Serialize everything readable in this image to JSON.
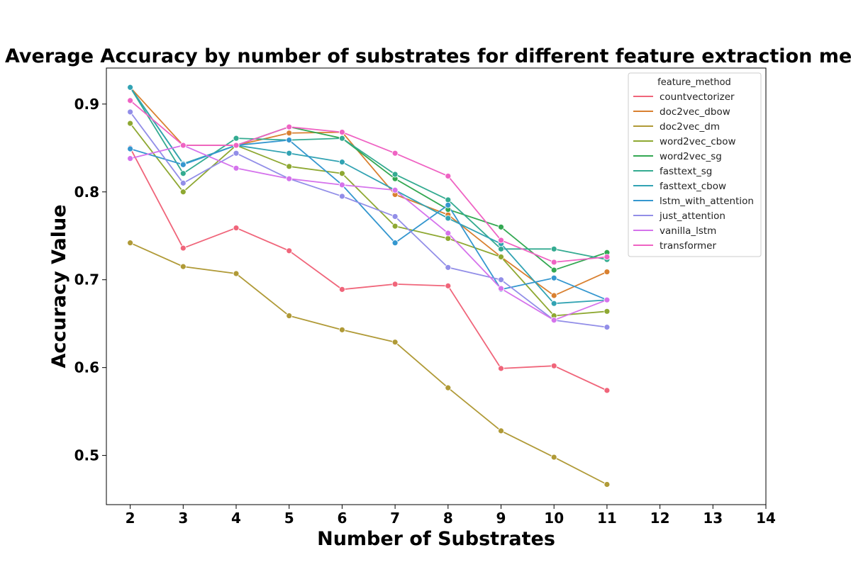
{
  "chart_data": {
    "type": "line",
    "title": "Average Accuracy by number of substrates for different feature extraction methods",
    "xlabel": "Number of Substrates",
    "ylabel": "Accuracy Value",
    "xlim": [
      1.55,
      14
    ],
    "ylim": [
      0.444,
      0.941
    ],
    "xticks": [
      "2",
      "3",
      "4",
      "5",
      "6",
      "7",
      "8",
      "9",
      "10",
      "11",
      "12",
      "13",
      "14"
    ],
    "yticks": [
      "0.5",
      "0.6",
      "0.7",
      "0.8",
      "0.9"
    ],
    "grid": false,
    "legend": {
      "title": "feature_method",
      "position": "top-right"
    },
    "x": [
      2,
      3,
      4,
      5,
      6,
      7,
      8,
      9,
      10,
      11
    ],
    "series": [
      {
        "name": "countvectorizer",
        "color": "#f0657a",
        "values": [
          0.85,
          0.736,
          0.759,
          0.733,
          0.689,
          0.695,
          0.693,
          0.599,
          0.602,
          0.574
        ]
      },
      {
        "name": "doc2vec_dbow",
        "color": "#d98030",
        "values": [
          0.919,
          0.853,
          0.853,
          0.867,
          0.868,
          0.797,
          0.774,
          0.726,
          0.682,
          0.709
        ]
      },
      {
        "name": "doc2vec_dm",
        "color": "#b09a37",
        "values": [
          0.742,
          0.715,
          0.707,
          0.659,
          0.643,
          0.629,
          0.577,
          0.528,
          0.498,
          0.467
        ]
      },
      {
        "name": "word2vec_cbow",
        "color": "#8ea832",
        "values": [
          0.878,
          0.8,
          0.853,
          0.829,
          0.821,
          0.761,
          0.747,
          0.726,
          0.659,
          0.664
        ]
      },
      {
        "name": "word2vec_sg",
        "color": "#33a852",
        "values": [
          0.919,
          0.832,
          0.853,
          0.874,
          0.861,
          0.815,
          0.78,
          0.76,
          0.711,
          0.731
        ]
      },
      {
        "name": "fasttext_sg",
        "color": "#34ab91",
        "values": [
          0.919,
          0.821,
          0.861,
          0.859,
          0.861,
          0.82,
          0.791,
          0.735,
          0.735,
          0.723
        ]
      },
      {
        "name": "fasttext_cbow",
        "color": "#32a3b3",
        "values": [
          0.919,
          0.832,
          0.853,
          0.844,
          0.834,
          0.802,
          0.77,
          0.741,
          0.673,
          0.677
        ]
      },
      {
        "name": "lstm_with_attention",
        "color": "#3597cf",
        "values": [
          0.849,
          0.831,
          0.853,
          0.859,
          0.808,
          0.742,
          0.785,
          0.689,
          0.702,
          0.677
        ]
      },
      {
        "name": "just_attention",
        "color": "#928ee8",
        "values": [
          0.891,
          0.81,
          0.844,
          0.815,
          0.795,
          0.772,
          0.714,
          0.7,
          0.654,
          0.646
        ]
      },
      {
        "name": "vanilla_lstm",
        "color": "#d573ec",
        "values": [
          0.838,
          0.853,
          0.827,
          0.815,
          0.808,
          0.802,
          0.753,
          0.69,
          0.654,
          0.677
        ]
      },
      {
        "name": "transformer",
        "color": "#ef63c3",
        "values": [
          0.904,
          0.853,
          0.853,
          0.874,
          0.868,
          0.844,
          0.818,
          0.745,
          0.72,
          0.726
        ]
      }
    ]
  }
}
